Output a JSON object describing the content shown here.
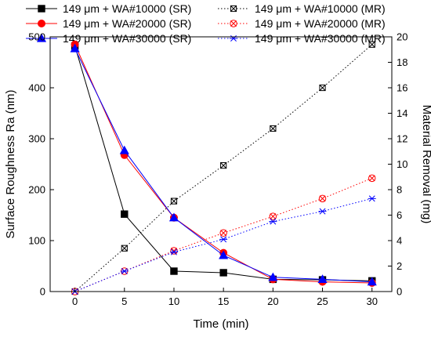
{
  "chart_data": {
    "type": "line",
    "xlabel": "Time (min)",
    "ylabel_left": "Surface Roughness Ra (nm)",
    "ylabel_right": "Material Removal (mg)",
    "x": [
      0,
      5,
      10,
      15,
      20,
      25,
      30
    ],
    "x_ticks": [
      0,
      5,
      10,
      15,
      20,
      25,
      30
    ],
    "xlim": [
      -2.5,
      32
    ],
    "ylim_left": [
      0,
      500
    ],
    "ylim_right": [
      0,
      20
    ],
    "y_ticks_left": [
      0,
      100,
      200,
      300,
      400,
      500
    ],
    "y_ticks_right": [
      0,
      2,
      4,
      6,
      8,
      10,
      12,
      14,
      16,
      18,
      20
    ],
    "grid": false,
    "legend_position": "top",
    "series": [
      {
        "name": "149 μm + WA#10000 (SR)",
        "axis": "left",
        "color": "#000000",
        "marker": "square",
        "line_style": "solid",
        "values": [
          482,
          152,
          40,
          37,
          24,
          23,
          21
        ]
      },
      {
        "name": "149 μm + WA#10000 (MR)",
        "axis": "right",
        "color": "#000000",
        "marker": "square-x",
        "line_style": "dotted",
        "values": [
          0,
          3.4,
          7.1,
          9.9,
          12.8,
          16.0,
          19.4
        ]
      },
      {
        "name": "149 μm + WA#20000 (SR)",
        "axis": "left",
        "color": "#ff0000",
        "marker": "circle",
        "line_style": "solid",
        "values": [
          485,
          268,
          145,
          76,
          24,
          19,
          17
        ]
      },
      {
        "name": "149 μm + WA#20000 (MR)",
        "axis": "right",
        "color": "#ff0000",
        "marker": "circle-x",
        "line_style": "dotted",
        "values": [
          0,
          1.6,
          3.2,
          4.6,
          5.9,
          7.3,
          8.9
        ]
      },
      {
        "name": "149 μm + WA#30000 (SR)",
        "axis": "left",
        "color": "#0000ff",
        "marker": "triangle",
        "line_style": "solid",
        "values": [
          477,
          277,
          145,
          71,
          28,
          24,
          19
        ]
      },
      {
        "name": "149 μm + WA#30000 (MR)",
        "axis": "right",
        "color": "#0000ff",
        "marker": "x-cross",
        "line_style": "dotted",
        "values": [
          0,
          1.6,
          3.1,
          4.1,
          5.5,
          6.3,
          7.3
        ]
      }
    ]
  }
}
